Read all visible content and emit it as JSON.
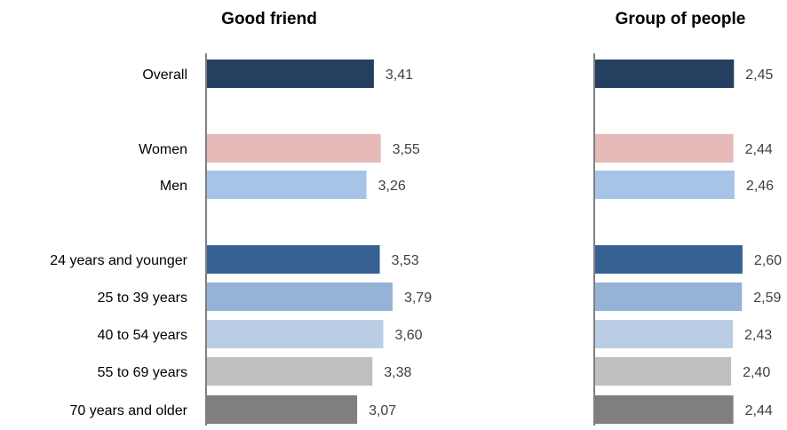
{
  "chart_data": [
    {
      "type": "bar",
      "orientation": "horizontal",
      "title": "Good friend",
      "categories": [
        "Overall",
        "Women",
        "Men",
        "24 years and younger",
        "25 to 39 years",
        "40 to 54 years",
        "55 to 69 years",
        "70 years and older"
      ],
      "values": [
        3.41,
        3.55,
        3.26,
        3.53,
        3.79,
        3.6,
        3.38,
        3.07
      ],
      "value_labels": [
        "3,41",
        "3,55",
        "3,26",
        "3,53",
        "3,79",
        "3,60",
        "3,38",
        "3,07"
      ],
      "bar_colors": [
        "#243f60",
        "#e6b9b8",
        "#a6c4e8",
        "#376092",
        "#95b3d7",
        "#b9cde5",
        "#bfbfbf",
        "#7f7f7f"
      ],
      "grid": false
    },
    {
      "type": "bar",
      "orientation": "horizontal",
      "title": "Group of people",
      "categories": [
        "Overall",
        "Women",
        "Men",
        "24 years and younger",
        "25 to 39 years",
        "40 to 54 years",
        "55 to 69 years",
        "70 years and older"
      ],
      "values": [
        2.45,
        2.44,
        2.46,
        2.6,
        2.59,
        2.43,
        2.4,
        2.44
      ],
      "value_labels": [
        "2,45",
        "2,44",
        "2,46",
        "2,60",
        "2,59",
        "2,43",
        "2,40",
        "2,44"
      ],
      "bar_colors": [
        "#243f60",
        "#e6b9b8",
        "#a6c4e8",
        "#376092",
        "#95b3d7",
        "#b9cde5",
        "#bfbfbf",
        "#7f7f7f"
      ],
      "grid": false
    }
  ]
}
